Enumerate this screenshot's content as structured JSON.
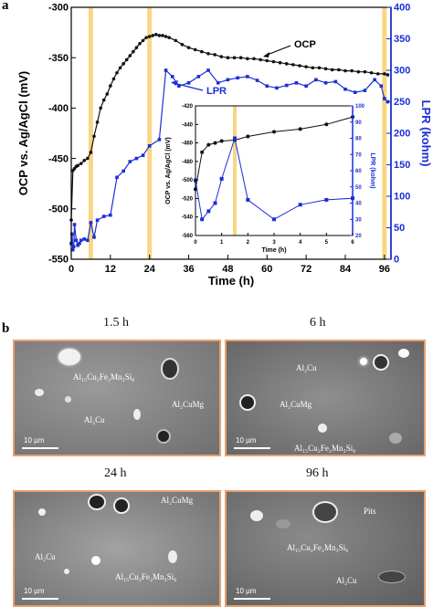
{
  "panel_a_letter": "a",
  "panel_b_letter": "b",
  "chart_data": [
    {
      "type": "line",
      "title": "",
      "xlabel": "Time (h)",
      "ylabel": "OCP vs. Ag/AgCl (mV)",
      "y2label": "LPR (kohm)",
      "xlim": [
        0,
        98
      ],
      "ylim": [
        -550,
        -300
      ],
      "y2lim": [
        0,
        400
      ],
      "x_ticks": [
        0,
        12,
        24,
        36,
        48,
        60,
        72,
        84,
        96
      ],
      "y_ticks": [
        -550,
        -500,
        -450,
        -400,
        -350,
        -300
      ],
      "y2_ticks": [
        0,
        50,
        100,
        150,
        200,
        250,
        300,
        350,
        400
      ],
      "highlight_times": [
        6,
        24,
        96
      ],
      "annotations": [
        "OCP",
        "LPR"
      ],
      "series": [
        {
          "name": "OCP",
          "color": "#111111",
          "axis": "left",
          "x": [
            0,
            0.5,
            1,
            1.5,
            2,
            3,
            4,
            5,
            6,
            7,
            8,
            9,
            10,
            11,
            12,
            13,
            14,
            15,
            16,
            17,
            18,
            19,
            20,
            21,
            22,
            23,
            24,
            25,
            26,
            27,
            28,
            29,
            30,
            32,
            34,
            36,
            38,
            40,
            42,
            44,
            46,
            48,
            50,
            52,
            54,
            56,
            58,
            60,
            62,
            64,
            66,
            68,
            70,
            72,
            74,
            76,
            78,
            80,
            82,
            84,
            86,
            88,
            90,
            92,
            94,
            96,
            97
          ],
          "y": [
            -511,
            -462,
            -460,
            -458,
            -457,
            -455,
            -452,
            -450,
            -444,
            -428,
            -414,
            -400,
            -392,
            -386,
            -378,
            -371,
            -365,
            -360,
            -356,
            -352,
            -348,
            -344,
            -340,
            -336,
            -333,
            -330,
            -329,
            -328,
            -327,
            -328,
            -328,
            -329,
            -330,
            -333,
            -337,
            -340,
            -342,
            -344,
            -346,
            -347,
            -349,
            -350,
            -350,
            -350,
            -351,
            -351,
            -352,
            -353,
            -354,
            -355,
            -356,
            -357,
            -358,
            -359,
            -360,
            -360,
            -361,
            -362,
            -362,
            -363,
            -363,
            -364,
            -364,
            -365,
            -366,
            -366,
            -367
          ]
        },
        {
          "name": "LPR",
          "color": "#1a2fd6",
          "axis": "right",
          "x": [
            0,
            0.25,
            0.5,
            0.75,
            1,
            1.5,
            2,
            2.5,
            3,
            4,
            5,
            6,
            7,
            8,
            10,
            12,
            14,
            16,
            18,
            20,
            22,
            24,
            27,
            29,
            31,
            33,
            36,
            39,
            42,
            45,
            48,
            51,
            54,
            57,
            60,
            63,
            66,
            69,
            72,
            75,
            78,
            81,
            84,
            87,
            90,
            93,
            95,
            96,
            97
          ],
          "y": [
            25,
            40,
            15,
            20,
            55,
            30,
            22,
            25,
            30,
            32,
            30,
            58,
            35,
            62,
            68,
            70,
            130,
            140,
            155,
            160,
            165,
            180,
            190,
            300,
            290,
            275,
            280,
            290,
            300,
            280,
            285,
            288,
            290,
            284,
            275,
            272,
            276,
            280,
            275,
            285,
            280,
            282,
            270,
            265,
            268,
            285,
            275,
            255,
            250
          ]
        }
      ]
    },
    {
      "type": "line",
      "title": "",
      "xlabel": "Time (h)",
      "ylabel": "OCP vs. Ag/AgCl (mV)",
      "y2label": "LPR (kohm)",
      "xlim": [
        0,
        6
      ],
      "ylim": [
        -560,
        -420
      ],
      "y2lim": [
        20,
        100
      ],
      "x_ticks": [
        0,
        1,
        2,
        3,
        4,
        5,
        6
      ],
      "y_ticks": [
        -560,
        -540,
        -520,
        -500,
        -480,
        -460,
        -440,
        -420
      ],
      "y2_ticks": [
        20,
        30,
        40,
        50,
        60,
        70,
        80,
        90,
        100
      ],
      "highlight_times": [
        1.5
      ],
      "series": [
        {
          "name": "OCP",
          "color": "#111111",
          "axis": "left",
          "x": [
            0,
            0.25,
            0.5,
            0.75,
            1,
            1.5,
            2,
            3,
            4,
            5,
            6
          ],
          "y": [
            -510,
            -470,
            -462,
            -460,
            -458,
            -457,
            -453,
            -448,
            -445,
            -440,
            -432
          ]
        },
        {
          "name": "LPR",
          "color": "#1a2fd6",
          "axis": "right",
          "x": [
            0,
            0.25,
            0.5,
            0.75,
            1,
            1.5,
            2,
            3,
            4,
            5,
            6
          ],
          "y": [
            54,
            30,
            35,
            40,
            55,
            80,
            42,
            30,
            39,
            42,
            43
          ]
        }
      ]
    }
  ],
  "micrographs": [
    {
      "title": "1.5 h",
      "scale": "10 µm",
      "labels": [
        "Al₁₅Cu₂Fe₂Mn₃Si₆",
        "Al₂CuMg",
        "Al₂Cu"
      ]
    },
    {
      "title": "6 h",
      "scale": "10 µm",
      "labels": [
        "Al₂Cu",
        "Al₂CuMg",
        "Al₁₅Cu₂Fe₂Mn₃Si₆"
      ]
    },
    {
      "title": "24 h",
      "scale": "10 µm",
      "labels": [
        "Al₂CuMg",
        "Al₂Cu",
        "Al₁₅Cu₂Fe₂Mn₃Si₆"
      ]
    },
    {
      "title": "96 h",
      "scale": "10 µm",
      "labels": [
        "Pits",
        "Al₁₅Cu₂Fe₂Mn₃Si₆",
        "Al₂Cu"
      ]
    }
  ]
}
